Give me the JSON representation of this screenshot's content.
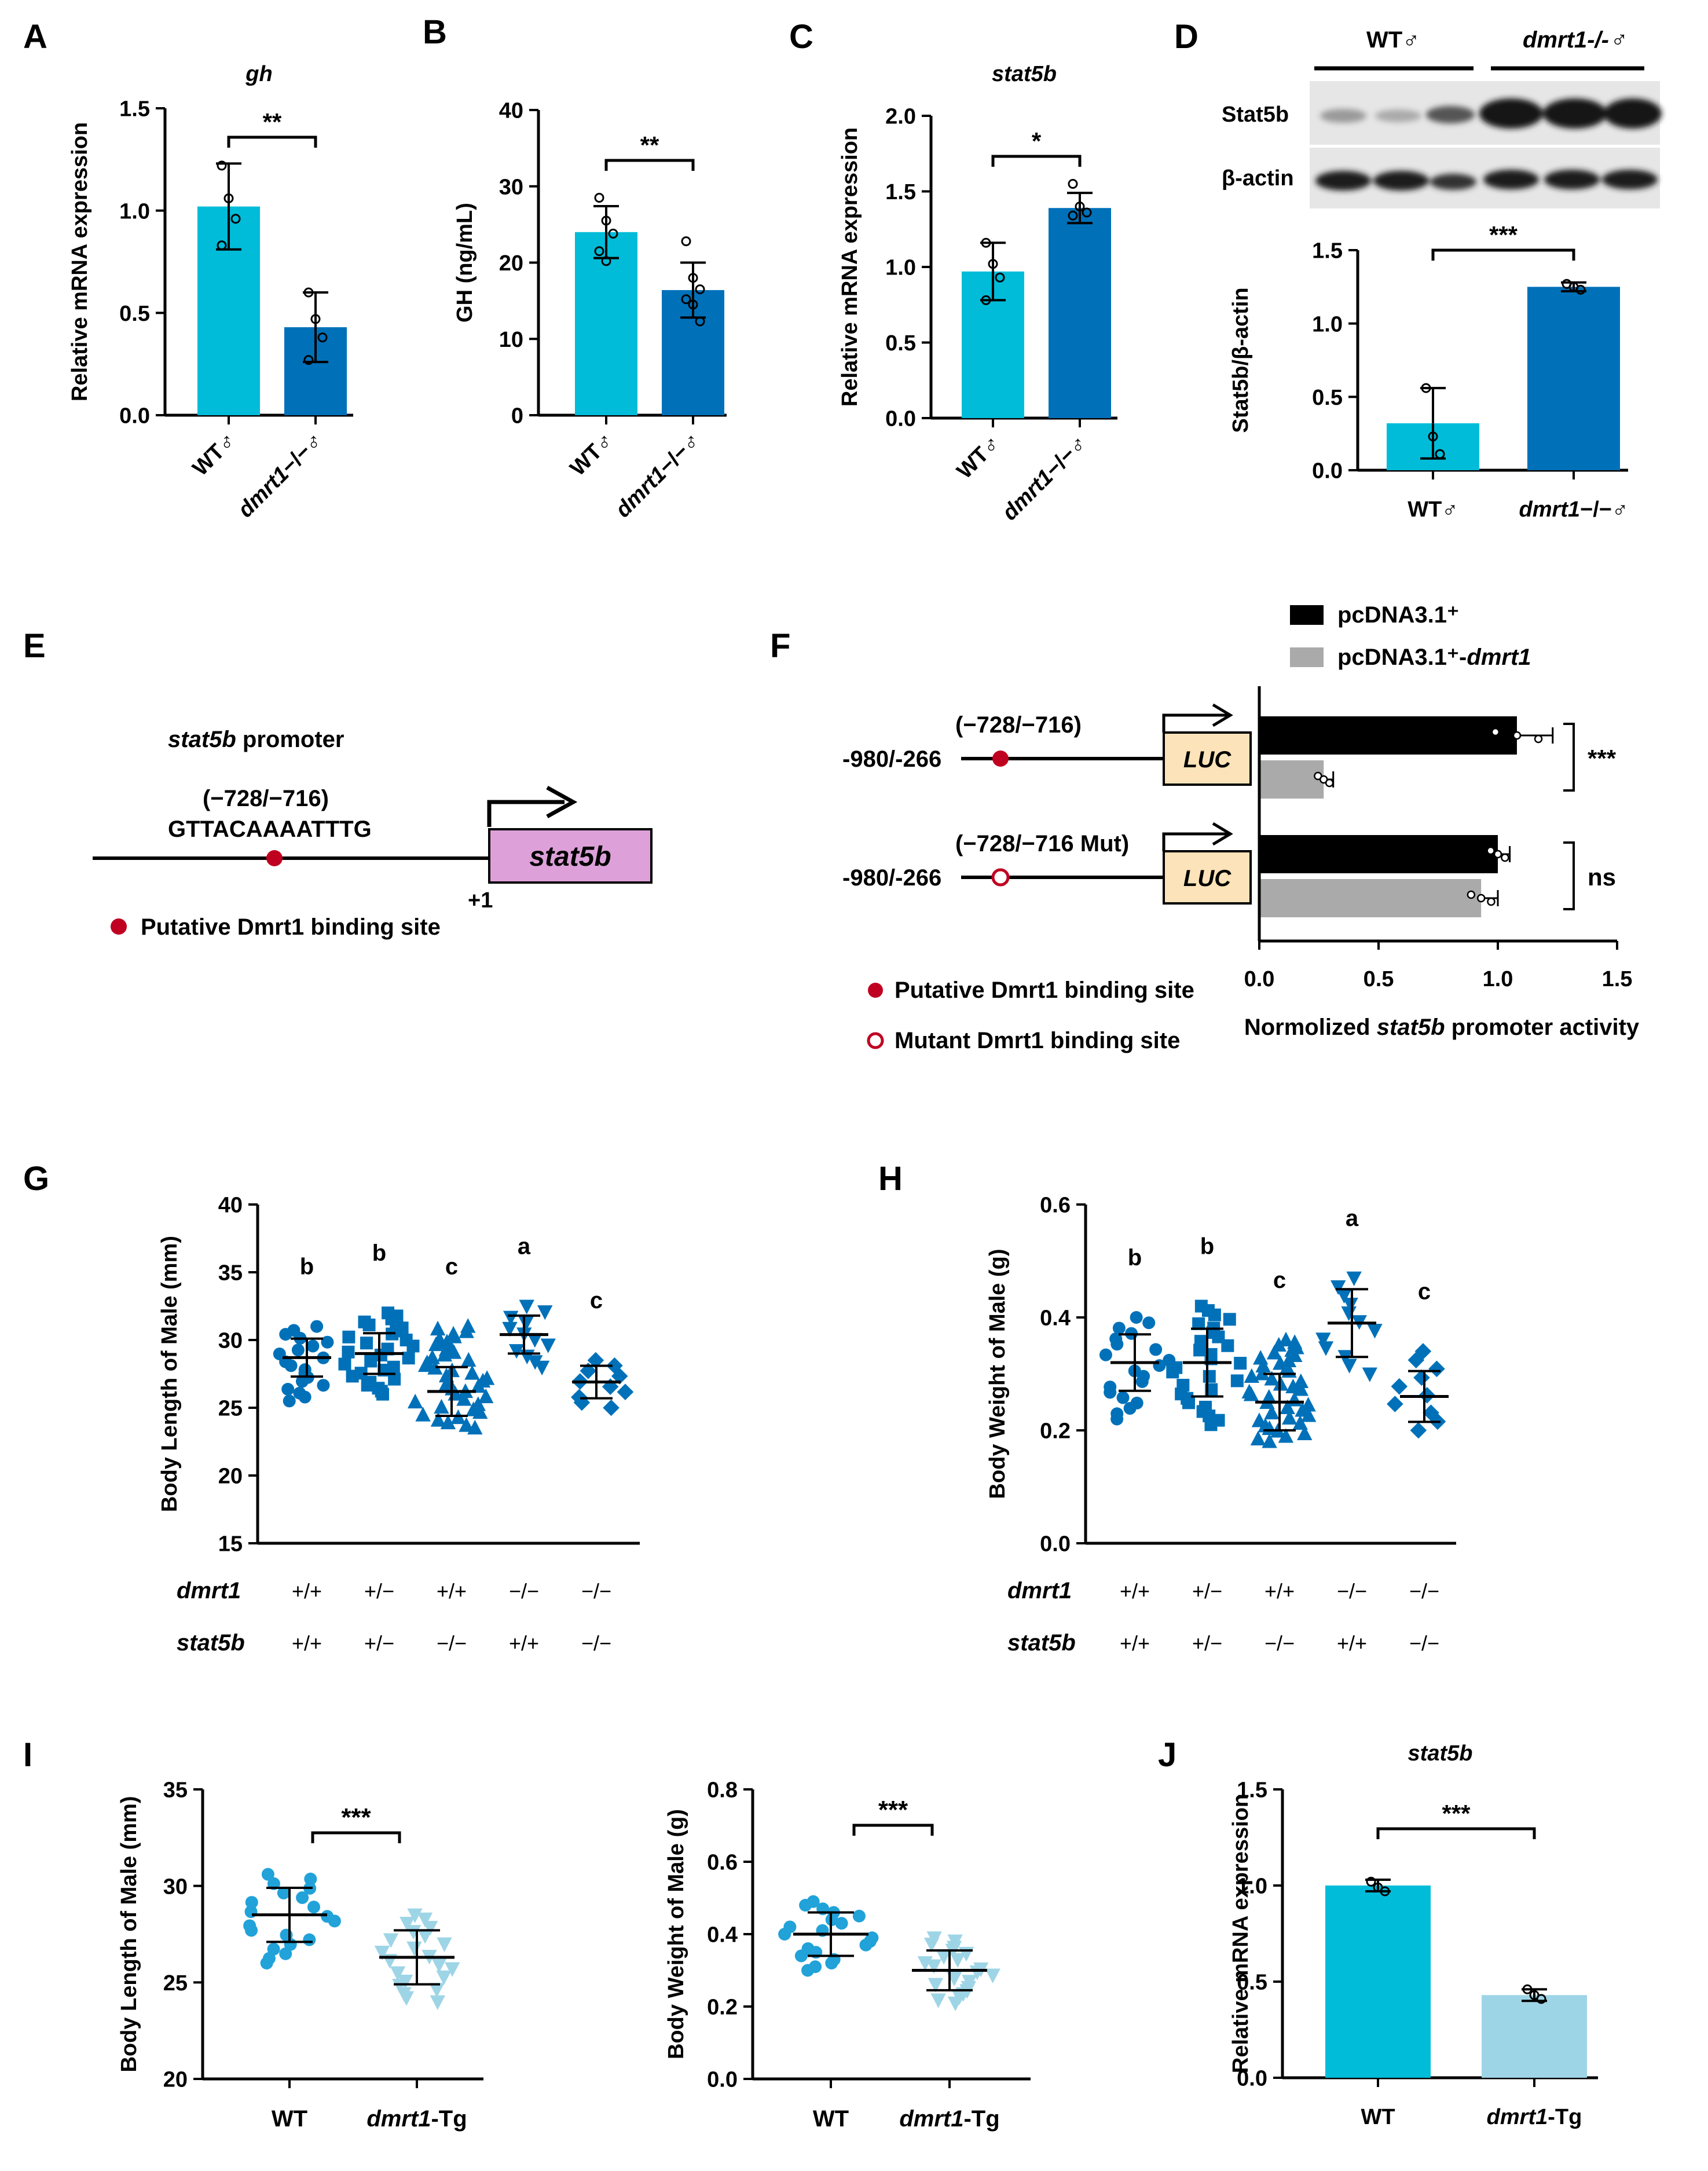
{
  "colors": {
    "wt": "#00BCD9",
    "mut": "#0071B9",
    "light": "#9ED5E6",
    "black": "#000000",
    "gray": "#AAAAAA",
    "pink": "#DDA0D9",
    "luc": "#FCE3B9",
    "red": "#C00020",
    "dot_wt": "#21A2D9",
    "dot_g": "#1A82C4"
  },
  "panels": [
    "A",
    "B",
    "C",
    "D",
    "E",
    "F",
    "G",
    "H",
    "I",
    "J"
  ],
  "chart_data": [
    {
      "id": "A",
      "type": "bar",
      "title": "gh",
      "ylabel": "Relative mRNA expression",
      "ylim": [
        0,
        1.5
      ],
      "yticks": [
        "0.0",
        "0.5",
        "1.0",
        "1.5"
      ],
      "categories": [
        "WT♂",
        "dmrt1−/−♂"
      ],
      "values": [
        1.02,
        0.43
      ],
      "errors": [
        0.21,
        0.17
      ],
      "points": [
        [
          1.22,
          1.06,
          0.96,
          0.83
        ],
        [
          0.6,
          0.47,
          0.38,
          0.27
        ]
      ],
      "significance": "**"
    },
    {
      "id": "B",
      "type": "bar",
      "title": "",
      "ylabel": "GH (ng/mL)",
      "ylim": [
        0,
        40
      ],
      "yticks": [
        "0",
        "10",
        "20",
        "30",
        "40"
      ],
      "categories": [
        "WT♂",
        "dmrt1−/−♂"
      ],
      "values": [
        24.0,
        16.4
      ],
      "errors": [
        3.4,
        3.6
      ],
      "points": [
        [
          28.5,
          25.5,
          23.8,
          21.5,
          20.2
        ],
        [
          22.8,
          18.0,
          16.5,
          15.2,
          14.5,
          12.3
        ]
      ],
      "significance": "**"
    },
    {
      "id": "C",
      "type": "bar",
      "title": "stat5b",
      "ylabel": "Relative mRNA expression",
      "ylim": [
        0,
        2.0
      ],
      "yticks": [
        "0.0",
        "0.5",
        "1.0",
        "1.5",
        "2.0"
      ],
      "categories": [
        "WT♂",
        "dmrt1−/−♂"
      ],
      "values": [
        0.97,
        1.39
      ],
      "errors": [
        0.19,
        0.1
      ],
      "points": [
        [
          1.16,
          1.02,
          0.93,
          0.78
        ],
        [
          1.55,
          1.4,
          1.36,
          1.34
        ]
      ],
      "significance": "*"
    },
    {
      "id": "D",
      "type": "bar",
      "title": "",
      "ylabel": "Stat5b/β-actin",
      "ylim": [
        0,
        1.5
      ],
      "yticks": [
        "0.0",
        "0.5",
        "1.0",
        "1.5"
      ],
      "categories": [
        "WT♂",
        "dmrt1−/−♂"
      ],
      "values": [
        0.32,
        1.25
      ],
      "errors": [
        0.24,
        0.03
      ],
      "points": [
        [
          0.56,
          0.23,
          0.11
        ],
        [
          1.27,
          1.25,
          1.23
        ]
      ],
      "significance": "***",
      "blot": {
        "columns": [
          "WT♂",
          "dmrt1-/-♂"
        ],
        "rows": [
          "Stat5b",
          "β-actin"
        ]
      }
    },
    {
      "id": "F",
      "type": "bar",
      "orientation": "horizontal",
      "xlabel_pre": "Normolized ",
      "xlabel_ital": "stat5b",
      "xlabel_post": " promoter activity",
      "xlim": [
        0,
        1.5
      ],
      "xticks": [
        "0.0",
        "0.5",
        "1.0",
        "1.5"
      ],
      "constructs": [
        {
          "left": "-980/-266",
          "site": "(−728/−716)",
          "mutant": false
        },
        {
          "left": "-980/-266",
          "site": "(−728/−716 Mut)",
          "mutant": true
        }
      ],
      "series": [
        {
          "name": "pcDNA3.1⁺",
          "values": [
            1.08,
            1.0
          ],
          "errors": [
            0.15,
            0.05
          ]
        },
        {
          "name": "pcDNA3.1⁺-dmrt1",
          "values": [
            0.27,
            0.93
          ],
          "errors": [
            0.04,
            0.07
          ]
        }
      ],
      "significance": [
        "***",
        "ns"
      ],
      "luc": "LUC",
      "legend_site": "Putative Dmrt1 binding site",
      "legend_mut": "Mutant Dmrt1 binding site"
    },
    {
      "id": "G",
      "type": "scatter",
      "ylabel": "Body Length of Male (mm)",
      "ylim": [
        15,
        40
      ],
      "yticks": [
        "15",
        "20",
        "25",
        "30",
        "35",
        "40"
      ],
      "groups": [
        {
          "mean": 28.7,
          "sd": 1.4,
          "letter": "b",
          "n": 20,
          "lo": 25.5,
          "hi": 31.0,
          "shape": "circle"
        },
        {
          "mean": 29.0,
          "sd": 1.5,
          "letter": "b",
          "n": 28,
          "lo": 26.0,
          "hi": 32.0,
          "shape": "square"
        },
        {
          "mean": 26.2,
          "sd": 1.8,
          "letter": "c",
          "n": 40,
          "lo": 23.5,
          "hi": 31.0,
          "shape": "tri-up"
        },
        {
          "mean": 30.4,
          "sd": 1.4,
          "letter": "a",
          "n": 12,
          "lo": 28.0,
          "hi": 32.5,
          "shape": "tri-down"
        },
        {
          "mean": 26.9,
          "sd": 1.2,
          "letter": "c",
          "n": 10,
          "lo": 25.0,
          "hi": 28.5,
          "shape": "diamond"
        }
      ],
      "genotype_rows": [
        {
          "gene": "dmrt1",
          "values": [
            "+/+",
            "+/−",
            "+/+",
            "−/−",
            "−/−"
          ]
        },
        {
          "gene": "stat5b",
          "values": [
            "+/+",
            "+/−",
            "−/−",
            "+/+",
            "−/−"
          ]
        }
      ]
    },
    {
      "id": "H",
      "type": "scatter",
      "ylabel": "Body Weight of Male (g)",
      "ylim": [
        0,
        0.6
      ],
      "yticks": [
        "0.0",
        "0.2",
        "0.4",
        "0.6"
      ],
      "groups": [
        {
          "mean": 0.32,
          "sd": 0.05,
          "letter": "b",
          "n": 20,
          "lo": 0.22,
          "hi": 0.4,
          "shape": "circle"
        },
        {
          "mean": 0.32,
          "sd": 0.06,
          "letter": "b",
          "n": 28,
          "lo": 0.21,
          "hi": 0.42,
          "shape": "square"
        },
        {
          "mean": 0.25,
          "sd": 0.05,
          "letter": "c",
          "n": 40,
          "lo": 0.18,
          "hi": 0.36,
          "shape": "tri-up"
        },
        {
          "mean": 0.39,
          "sd": 0.06,
          "letter": "a",
          "n": 12,
          "lo": 0.3,
          "hi": 0.47,
          "shape": "tri-down"
        },
        {
          "mean": 0.26,
          "sd": 0.045,
          "letter": "c",
          "n": 10,
          "lo": 0.2,
          "hi": 0.34,
          "shape": "diamond"
        }
      ],
      "genotype_rows": [
        {
          "gene": "dmrt1",
          "values": [
            "+/+",
            "+/−",
            "+/+",
            "−/−",
            "−/−"
          ]
        },
        {
          "gene": "stat5b",
          "values": [
            "+/+",
            "+/−",
            "−/−",
            "+/+",
            "−/−"
          ]
        }
      ]
    },
    {
      "id": "I1",
      "type": "scatter",
      "ylabel": "Body Length of Male (mm)",
      "ylim": [
        20,
        35
      ],
      "yticks": [
        "20",
        "25",
        "30",
        "35"
      ],
      "categories": [
        "WT",
        "dmrt1-Tg"
      ],
      "groups": [
        {
          "mean": 28.5,
          "sd": 1.4,
          "n": 20,
          "lo": 26.0,
          "hi": 30.6,
          "shape": "circle"
        },
        {
          "mean": 26.3,
          "sd": 1.4,
          "n": 22,
          "lo": 24.0,
          "hi": 28.5,
          "shape": "tri-down"
        }
      ],
      "significance": "***"
    },
    {
      "id": "I2",
      "type": "scatter",
      "ylabel": "Body Weight of Male (g)",
      "ylim": [
        0,
        0.8
      ],
      "yticks": [
        "0.0",
        "0.2",
        "0.4",
        "0.6",
        "0.8"
      ],
      "categories": [
        "WT",
        "dmrt1-Tg"
      ],
      "groups": [
        {
          "mean": 0.4,
          "sd": 0.06,
          "n": 20,
          "lo": 0.3,
          "hi": 0.49,
          "shape": "circle"
        },
        {
          "mean": 0.3,
          "sd": 0.055,
          "n": 22,
          "lo": 0.21,
          "hi": 0.39,
          "shape": "tri-down"
        }
      ],
      "significance": "***"
    },
    {
      "id": "J",
      "type": "bar",
      "title": "stat5b",
      "ylabel": "Relative mRNA expression",
      "ylim": [
        0,
        1.5
      ],
      "yticks": [
        "0.0",
        "0.5",
        "1.0",
        "1.5"
      ],
      "categories": [
        "WT",
        "dmrt1-Tg"
      ],
      "values": [
        1.0,
        0.43
      ],
      "errors": [
        0.03,
        0.03
      ],
      "points": [
        [
          1.02,
          0.99,
          0.97
        ],
        [
          0.46,
          0.43,
          0.41
        ]
      ],
      "significance": "***"
    }
  ],
  "diagram_e": {
    "title_ital": "stat5b",
    "title_post": " promoter",
    "site": "(−728/−716)",
    "sequence": "GTTACAAAATTTG",
    "gene": "stat5b",
    "tss": "+1",
    "legend": "Putative Dmrt1 binding site"
  }
}
